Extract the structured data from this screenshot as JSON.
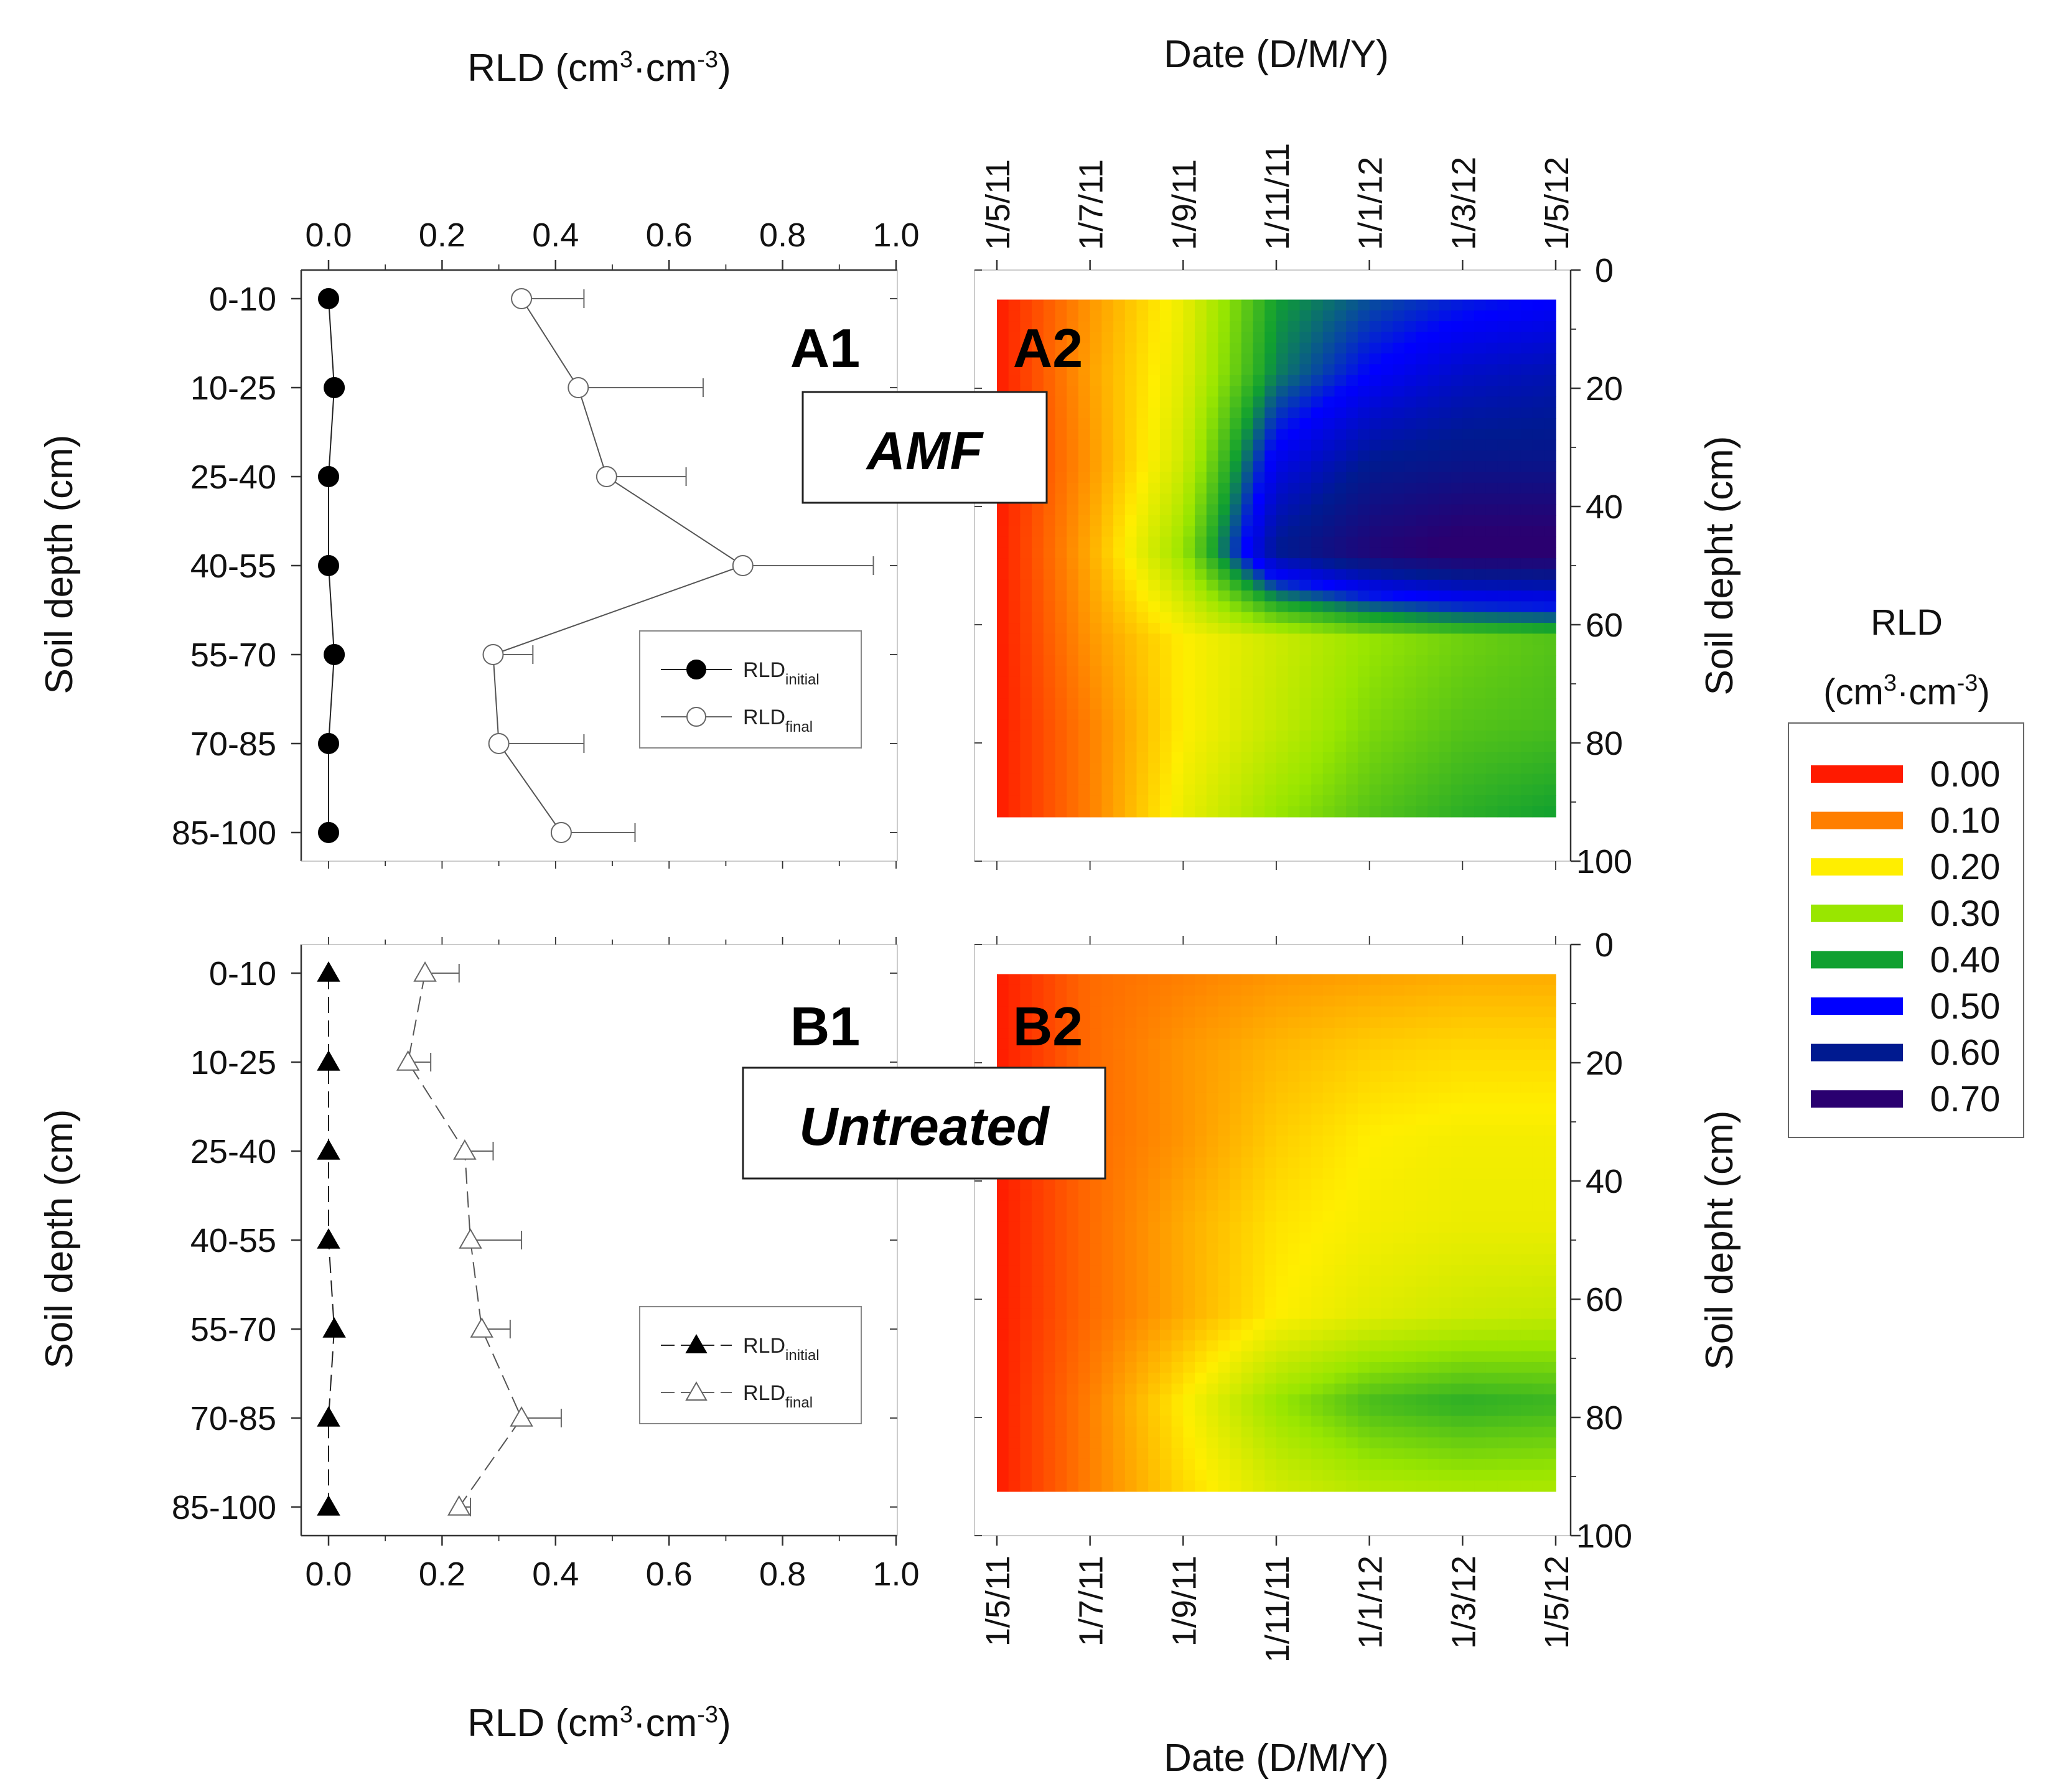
{
  "chart_data": [
    {
      "type": "line",
      "panel": "A1",
      "panel_label": "A1",
      "treatment_box": "AMF",
      "xlabel": "RLD (cm3·cm-3)",
      "xlabel_parts": [
        "RLD (cm",
        "3",
        "·cm",
        "-3",
        ")"
      ],
      "xlim": [
        0,
        1.0
      ],
      "xticks": [
        "0.0",
        "0.2",
        "0.4",
        "0.6",
        "0.8",
        "1.0"
      ],
      "xtick_values": [
        0,
        0.2,
        0.4,
        0.6,
        0.8,
        1.0
      ],
      "xaxis_position": "top",
      "ylabel": "Soil depth (cm)",
      "categories": [
        "0-10",
        "10-25",
        "25-40",
        "40-55",
        "55-70",
        "70-85",
        "85-100"
      ],
      "series": [
        {
          "name": "RLDinitial",
          "name_base": "RLD",
          "name_sub": "initial",
          "marker": "filled-circle",
          "line": "solid",
          "values": [
            0.0,
            0.01,
            0.0,
            0.0,
            0.01,
            0.0,
            0.0
          ],
          "errors": null
        },
        {
          "name": "RLDfinal",
          "name_base": "RLD",
          "name_sub": "final",
          "marker": "open-circle",
          "line": "solid",
          "values": [
            0.34,
            0.44,
            0.49,
            0.73,
            0.29,
            0.3,
            0.41
          ],
          "errors": [
            0.11,
            0.22,
            0.14,
            0.23,
            0.07,
            0.15,
            0.13
          ]
        }
      ],
      "legend": "right-middle"
    },
    {
      "type": "heatmap",
      "panel": "A2",
      "panel_label": "A2",
      "xlabel": "Date (D/M/Y)",
      "xaxis_position": "top",
      "xticks": [
        "1/5/11",
        "1/7/11",
        "1/9/11",
        "1/11/11",
        "1/1/12",
        "1/3/12",
        "1/5/12"
      ],
      "ylabel": "Soil depht (cm)",
      "ylim": [
        0,
        100
      ],
      "yticks": [
        "0",
        "20",
        "40",
        "60",
        "80",
        "100"
      ],
      "depths_cm": [
        5,
        17.5,
        32.5,
        47.5,
        62.5,
        77.5,
        92.5
      ],
      "values": [
        [
          0.0,
          0.12,
          0.22,
          0.4,
          0.45,
          0.48,
          0.5
        ],
        [
          0.0,
          0.13,
          0.23,
          0.42,
          0.5,
          0.55,
          0.57
        ],
        [
          0.0,
          0.12,
          0.25,
          0.52,
          0.6,
          0.62,
          0.62
        ],
        [
          0.0,
          0.14,
          0.3,
          0.6,
          0.68,
          0.72,
          0.72
        ],
        [
          0.0,
          0.12,
          0.2,
          0.25,
          0.3,
          0.33,
          0.35
        ],
        [
          0.0,
          0.1,
          0.2,
          0.26,
          0.32,
          0.35,
          0.36
        ],
        [
          0.0,
          0.1,
          0.22,
          0.3,
          0.35,
          0.38,
          0.4
        ]
      ]
    },
    {
      "type": "line",
      "panel": "B1",
      "panel_label": "B1",
      "treatment_box": "Untreated",
      "xlabel": "RLD (cm3·cm-3)",
      "xlabel_parts": [
        "RLD (cm",
        "3",
        "·cm",
        "-3",
        ")"
      ],
      "xlim": [
        0,
        1.0
      ],
      "xticks": [
        "0.0",
        "0.2",
        "0.4",
        "0.6",
        "0.8",
        "1.0"
      ],
      "xtick_values": [
        0,
        0.2,
        0.4,
        0.6,
        0.8,
        1.0
      ],
      "xaxis_position": "bottom",
      "ylabel": "Soil depth (cm)",
      "categories": [
        "0-10",
        "10-25",
        "25-40",
        "40-55",
        "55-70",
        "70-85",
        "85-100"
      ],
      "series": [
        {
          "name": "RLDinitial",
          "name_base": "RLD",
          "name_sub": "initial",
          "marker": "filled-triangle",
          "line": "dashed",
          "values": [
            0.0,
            0.0,
            0.0,
            0.0,
            0.01,
            0.0,
            0.0
          ],
          "errors": null
        },
        {
          "name": "RLDfinal",
          "name_base": "RLD",
          "name_sub": "final",
          "marker": "open-triangle",
          "line": "dashed",
          "values": [
            0.17,
            0.14,
            0.24,
            0.25,
            0.27,
            0.34,
            0.23
          ],
          "errors": [
            0.06,
            0.04,
            0.05,
            0.09,
            0.05,
            0.07,
            0.02
          ]
        }
      ],
      "legend": "right-lower"
    },
    {
      "type": "heatmap",
      "panel": "B2",
      "panel_label": "B2",
      "xlabel": "Date (D/M/Y)",
      "xaxis_position": "bottom",
      "xticks": [
        "1/5/11",
        "1/7/11",
        "1/9/11",
        "1/11/11",
        "1/1/12",
        "1/3/12",
        "1/5/12"
      ],
      "ylabel": "Soil depht (cm)",
      "ylim": [
        0,
        100
      ],
      "yticks": [
        "0",
        "20",
        "40",
        "60",
        "80",
        "100"
      ],
      "depths_cm": [
        5,
        17.5,
        32.5,
        47.5,
        62.5,
        77.5,
        92.5
      ],
      "values": [
        [
          0.0,
          0.08,
          0.1,
          0.12,
          0.13,
          0.14,
          0.14
        ],
        [
          0.0,
          0.08,
          0.12,
          0.15,
          0.17,
          0.18,
          0.18
        ],
        [
          0.0,
          0.08,
          0.12,
          0.17,
          0.2,
          0.21,
          0.21
        ],
        [
          0.0,
          0.08,
          0.14,
          0.19,
          0.21,
          0.22,
          0.22
        ],
        [
          0.0,
          0.08,
          0.14,
          0.2,
          0.23,
          0.25,
          0.26
        ],
        [
          0.0,
          0.1,
          0.2,
          0.3,
          0.36,
          0.38,
          0.37
        ],
        [
          0.0,
          0.1,
          0.18,
          0.24,
          0.27,
          0.28,
          0.28
        ]
      ]
    }
  ],
  "colorbar": {
    "title_line1": "RLD",
    "title_line2_parts": [
      "(cm",
      "3",
      "·cm",
      "-3",
      ")"
    ],
    "levels": [
      {
        "label": "0.00",
        "value": 0.0,
        "color": "#ff1a00"
      },
      {
        "label": "0.10",
        "value": 0.1,
        "color": "#ff7f00"
      },
      {
        "label": "0.20",
        "value": 0.2,
        "color": "#ffee00"
      },
      {
        "label": "0.30",
        "value": 0.3,
        "color": "#99e600"
      },
      {
        "label": "0.40",
        "value": 0.4,
        "color": "#10a030"
      },
      {
        "label": "0.50",
        "value": 0.5,
        "color": "#0000ff"
      },
      {
        "label": "0.60",
        "value": 0.6,
        "color": "#001a90"
      },
      {
        "label": "0.70",
        "value": 0.7,
        "color": "#2a0070"
      }
    ]
  }
}
